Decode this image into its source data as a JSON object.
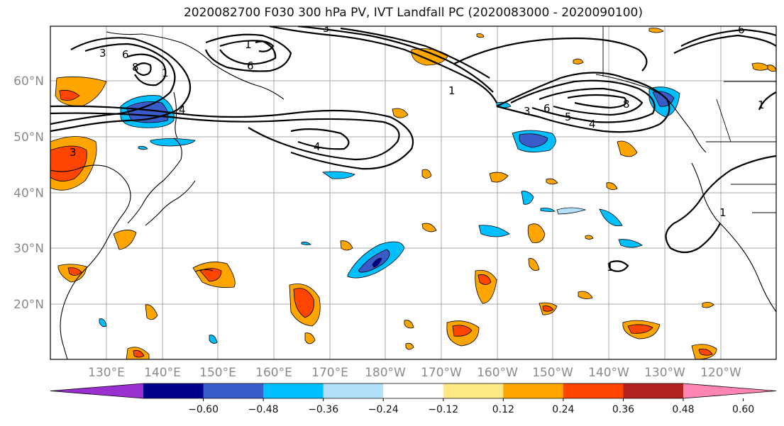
{
  "title": "2020082700 F030 300 hPa PV, IVT Landfall PC (2020083000 - 2020090100)",
  "axes": {
    "lat_labels": [
      "60°N",
      "50°N",
      "40°N",
      "30°N",
      "20°N"
    ],
    "lon_labels": [
      "130°E",
      "140°E",
      "150°E",
      "160°E",
      "170°E",
      "180°W",
      "170°W",
      "160°W",
      "150°W",
      "140°W",
      "130°W",
      "120°W"
    ]
  },
  "contour_labels": [
    "3",
    "6",
    "8",
    "1",
    "4",
    "3",
    "6",
    "1",
    "4",
    "1",
    "3",
    "6",
    "8",
    "4",
    "5",
    "6",
    "1",
    "1",
    "1",
    "3"
  ],
  "colorbar": {
    "colors": [
      "#9b30d1",
      "#00008b",
      "#3a5cc9",
      "#00bfff",
      "#b3e0fb",
      "#ffffff",
      "#ffe985",
      "#ffa500",
      "#ff4500",
      "#b22222",
      "#ff85b4"
    ],
    "tick_labels": [
      "−0.60",
      "−0.48",
      "−0.36",
      "−0.24",
      "−0.12",
      "0.12",
      "0.24",
      "0.36",
      "0.48",
      "0.60"
    ]
  }
}
